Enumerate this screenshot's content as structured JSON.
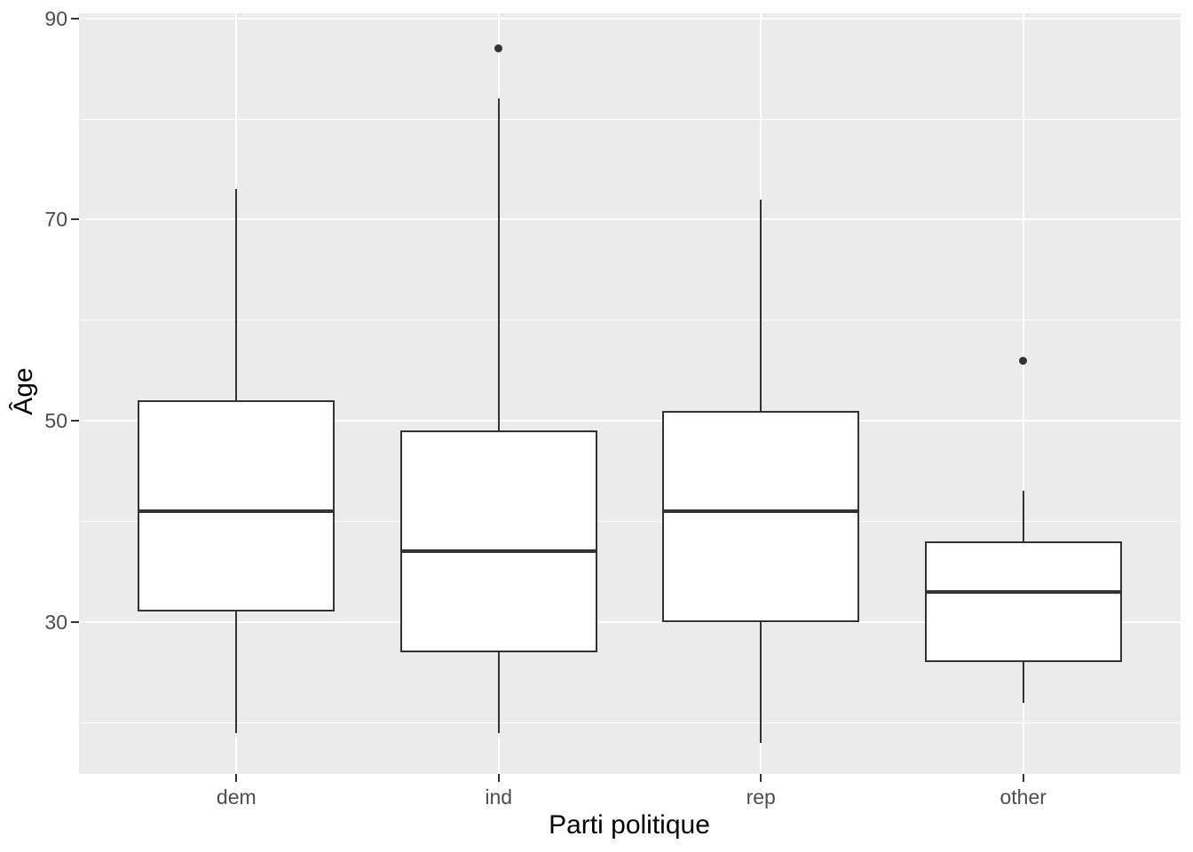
{
  "figure": {
    "background": "#FFFFFF",
    "panel_background": "#EBEBEB",
    "grid_color": "#FFFFFF",
    "box_stroke_color": "#333333",
    "box_fill_color": "#FFFFFF",
    "axis_text_color": "#4D4D4D",
    "axis_title_color": "#000000"
  },
  "chart_data": {
    "type": "boxplot",
    "title": "",
    "xlabel": "Parti politique",
    "ylabel": "Âge",
    "categories": [
      "dem",
      "ind",
      "rep",
      "other"
    ],
    "series": [
      {
        "category": "dem",
        "min": 19,
        "q1": 31,
        "median": 41,
        "q3": 52,
        "max": 73,
        "outliers": []
      },
      {
        "category": "ind",
        "min": 19,
        "q1": 27,
        "median": 37,
        "q3": 49,
        "max": 82,
        "outliers": [
          87
        ]
      },
      {
        "category": "rep",
        "min": 18,
        "q1": 30,
        "median": 41,
        "q3": 51,
        "max": 72,
        "outliers": []
      },
      {
        "category": "other",
        "min": 22,
        "q1": 26,
        "median": 33,
        "q3": 38,
        "max": 43,
        "outliers": [
          56
        ]
      }
    ],
    "y_ticks": [
      30,
      50,
      70,
      90
    ],
    "y_minor_ticks": [
      20,
      40,
      60,
      80
    ],
    "ylim": [
      14.9,
      90.5
    ],
    "grid": true,
    "legend": false
  }
}
